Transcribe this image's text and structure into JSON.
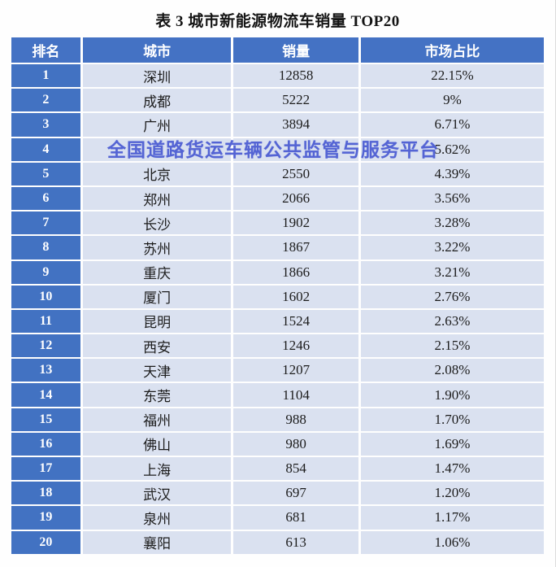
{
  "title": "表 3  城市新能源物流车销量 TOP20",
  "watermark": "全国道路货运车辆公共监管与服务平台",
  "colors": {
    "header_blue": "#4472C4",
    "rank_blue": "#4272C2",
    "row_light_blue": "#DAE1F0",
    "watermark_blue": "#4A5BD2",
    "text_dark": "#1C1C1C",
    "header_text": "#FFFFFF"
  },
  "table": {
    "headers": [
      "排名",
      "城市",
      "销量",
      "市场占比"
    ],
    "rows": [
      {
        "rank": "1",
        "city": "深圳",
        "sales": "12858",
        "share": "22.15%"
      },
      {
        "rank": "2",
        "city": "成都",
        "sales": "5222",
        "share": "9%"
      },
      {
        "rank": "3",
        "city": "广州",
        "sales": "3894",
        "share": "6.71%"
      },
      {
        "rank": "4",
        "city": "",
        "sales": "",
        "share": "5.62%"
      },
      {
        "rank": "5",
        "city": "北京",
        "sales": "2550",
        "share": "4.39%"
      },
      {
        "rank": "6",
        "city": "郑州",
        "sales": "2066",
        "share": "3.56%"
      },
      {
        "rank": "7",
        "city": "长沙",
        "sales": "1902",
        "share": "3.28%"
      },
      {
        "rank": "8",
        "city": "苏州",
        "sales": "1867",
        "share": "3.22%"
      },
      {
        "rank": "9",
        "city": "重庆",
        "sales": "1866",
        "share": "3.21%"
      },
      {
        "rank": "10",
        "city": "厦门",
        "sales": "1602",
        "share": "2.76%"
      },
      {
        "rank": "11",
        "city": "昆明",
        "sales": "1524",
        "share": "2.63%"
      },
      {
        "rank": "12",
        "city": "西安",
        "sales": "1246",
        "share": "2.15%"
      },
      {
        "rank": "13",
        "city": "天津",
        "sales": "1207",
        "share": "2.08%"
      },
      {
        "rank": "14",
        "city": "东莞",
        "sales": "1104",
        "share": "1.90%"
      },
      {
        "rank": "15",
        "city": "福州",
        "sales": "988",
        "share": "1.70%"
      },
      {
        "rank": "16",
        "city": "佛山",
        "sales": "980",
        "share": "1.69%"
      },
      {
        "rank": "17",
        "city": "上海",
        "sales": "854",
        "share": "1.47%"
      },
      {
        "rank": "18",
        "city": "武汉",
        "sales": "697",
        "share": "1.20%"
      },
      {
        "rank": "19",
        "city": "泉州",
        "sales": "681",
        "share": "1.17%"
      },
      {
        "rank": "20",
        "city": "襄阳",
        "sales": "613",
        "share": "1.06%"
      }
    ]
  },
  "chart_data": {
    "type": "table",
    "title": "表 3  城市新能源物流车销量 TOP20",
    "columns": [
      "排名",
      "城市",
      "销量",
      "市场占比"
    ],
    "categories": [
      "深圳",
      "成都",
      "广州",
      "",
      "北京",
      "郑州",
      "长沙",
      "苏州",
      "重庆",
      "厦门",
      "昆明",
      "西安",
      "天津",
      "东莞",
      "福州",
      "佛山",
      "上海",
      "武汉",
      "泉州",
      "襄阳"
    ],
    "series": [
      {
        "name": "销量",
        "values": [
          12858,
          5222,
          3894,
          null,
          2550,
          2066,
          1902,
          1867,
          1866,
          1602,
          1524,
          1246,
          1207,
          1104,
          988,
          980,
          854,
          697,
          681,
          613
        ]
      },
      {
        "name": "市场占比",
        "values": [
          "22.15%",
          "9%",
          "6.71%",
          "5.62%",
          "4.39%",
          "3.56%",
          "3.28%",
          "3.22%",
          "3.21%",
          "2.76%",
          "2.63%",
          "2.15%",
          "2.08%",
          "1.90%",
          "1.70%",
          "1.69%",
          "1.47%",
          "1.20%",
          "1.17%",
          "1.06%"
        ]
      }
    ],
    "notes": "Row 4 city and sales value obscured by watermark overlay 全国道路货运车辆公共监管与服务平台"
  }
}
